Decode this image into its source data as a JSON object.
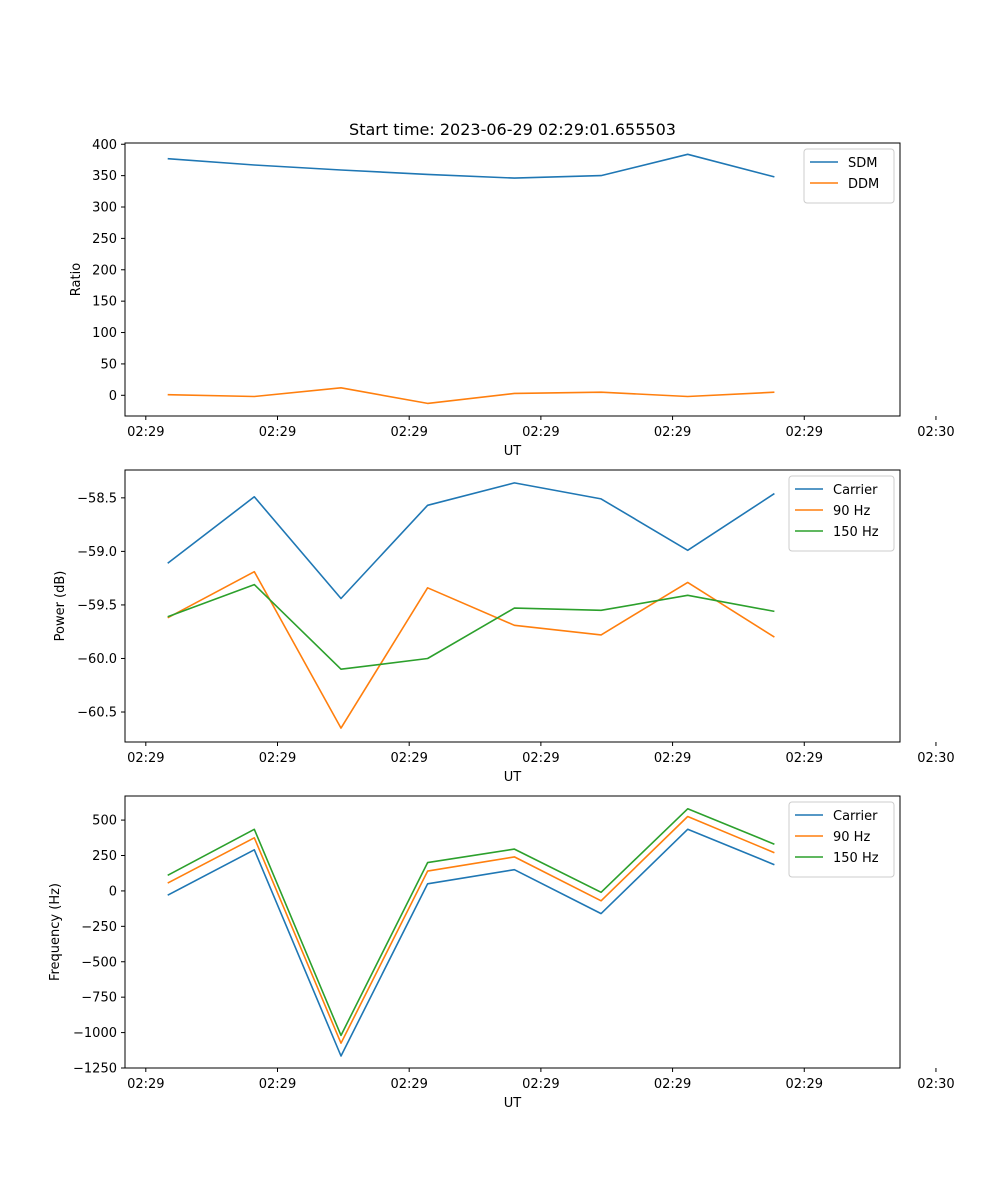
{
  "colors": {
    "c0": "#1f77b4",
    "c1": "#ff7f0e",
    "c2": "#2ca02c"
  },
  "chart_data": [
    {
      "type": "line",
      "title": "Start time: 2023-06-29 02:29:01.655503",
      "xlabel": "UT",
      "ylabel": "Ratio",
      "x_ticks": [
        "02:29",
        "02:29",
        "02:29",
        "02:29",
        "02:29",
        "02:29",
        "02:30"
      ],
      "y_ticks": [
        0,
        50,
        100,
        150,
        200,
        250,
        300,
        350,
        400
      ],
      "ylim": [
        -33,
        402
      ],
      "x_seconds": [
        1.66,
        8.24,
        14.82,
        21.4,
        27.99,
        34.57,
        41.15,
        47.73
      ],
      "series": [
        {
          "name": "SDM",
          "values": [
            377,
            367,
            359,
            352,
            346,
            350,
            384,
            348
          ]
        },
        {
          "name": "DDM",
          "values": [
            1,
            -2,
            12,
            -13,
            3,
            5,
            -2,
            5
          ]
        }
      ],
      "legend": "top-right"
    },
    {
      "type": "line",
      "title": "",
      "xlabel": "UT",
      "ylabel": "Power (dB)",
      "x_ticks": [
        "02:29",
        "02:29",
        "02:29",
        "02:29",
        "02:29",
        "02:29",
        "02:30"
      ],
      "y_ticks": [
        "-58.5",
        "-59.0",
        "-59.5",
        "-60.0",
        "-60.5"
      ],
      "ylim": [
        -60.78,
        -58.24
      ],
      "x_seconds": [
        1.66,
        8.24,
        14.82,
        21.4,
        27.99,
        34.57,
        41.15,
        47.73
      ],
      "series": [
        {
          "name": "Carrier",
          "values": [
            -59.11,
            -58.49,
            -59.44,
            -58.57,
            -58.36,
            -58.51,
            -58.99,
            -58.46
          ]
        },
        {
          "name": "90 Hz",
          "values": [
            -59.62,
            -59.19,
            -60.65,
            -59.34,
            -59.69,
            -59.78,
            -59.29,
            -59.8
          ]
        },
        {
          "name": "150 Hz",
          "values": [
            -59.61,
            -59.31,
            -60.1,
            -60.0,
            -59.53,
            -59.55,
            -59.41,
            -59.56
          ]
        }
      ],
      "legend": "top-right"
    },
    {
      "type": "line",
      "title": "",
      "xlabel": "UT",
      "ylabel": "Frequency (Hz)",
      "x_ticks": [
        "02:29",
        "02:29",
        "02:29",
        "02:29",
        "02:29",
        "02:29",
        "02:30"
      ],
      "y_ticks": [
        500,
        250,
        0,
        -250,
        -500,
        -750,
        -1000,
        -1250
      ],
      "ylim": [
        -1250,
        670
      ],
      "x_seconds": [
        1.66,
        8.24,
        14.82,
        21.4,
        27.99,
        34.57,
        41.15,
        47.73
      ],
      "series": [
        {
          "name": "Carrier",
          "values": [
            -30,
            290,
            -1165,
            50,
            150,
            -160,
            435,
            185
          ]
        },
        {
          "name": "90 Hz",
          "values": [
            55,
            375,
            -1075,
            140,
            240,
            -70,
            525,
            270
          ]
        },
        {
          "name": "150 Hz",
          "values": [
            110,
            435,
            -1020,
            200,
            295,
            -10,
            580,
            330
          ]
        }
      ],
      "legend": "top-right"
    }
  ]
}
